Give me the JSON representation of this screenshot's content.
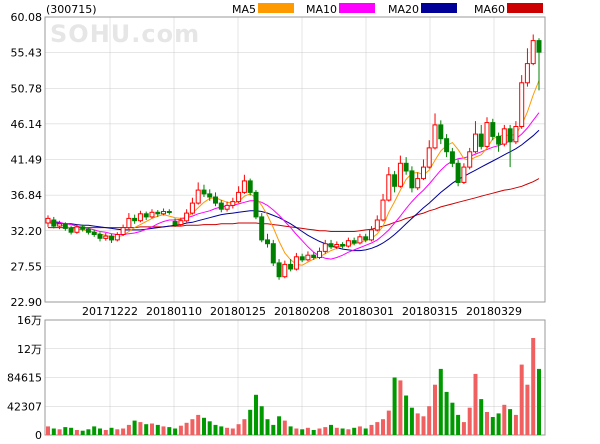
{
  "chart_data": {
    "type": "candlestick",
    "ticker": "(300715)",
    "watermark": "SOHU.com",
    "price_axis": {
      "ylim": [
        22.9,
        60.08
      ],
      "ticks": [
        "60.08",
        "55.43",
        "50.78",
        "46.14",
        "41.49",
        "36.84",
        "32.20",
        "27.55",
        "22.90"
      ]
    },
    "date_ticks": [
      "20171222",
      "20180110",
      "20180125",
      "20180208",
      "20180301",
      "20180315",
      "20180329"
    ],
    "legend": [
      {
        "name": "MA5",
        "color": "#FF9900"
      },
      {
        "name": "MA10",
        "color": "#FF00FF"
      },
      {
        "name": "MA20",
        "color": "#000099"
      },
      {
        "name": "MA60",
        "color": "#CC0000"
      }
    ],
    "colors": {
      "up": "#FF0000",
      "down": "#008000",
      "up_fill": "#FFFFFF",
      "volume_up": "#F06060",
      "volume_down": "#009900",
      "grid": "#CCCCCC"
    },
    "volume_axis": {
      "ylim": [
        0,
        160000
      ],
      "ticks": [
        "16万",
        "12万",
        "84615",
        "42307",
        "0"
      ]
    },
    "candles": [
      [
        33.2,
        33.8,
        34.2,
        32.7
      ],
      [
        33.6,
        32.8,
        34.0,
        32.5
      ],
      [
        32.8,
        33.1,
        33.5,
        32.4
      ],
      [
        33.1,
        32.5,
        33.3,
        32.2
      ],
      [
        32.5,
        32.0,
        32.8,
        31.7
      ],
      [
        32.0,
        32.7,
        33.0,
        31.8
      ],
      [
        32.7,
        32.4,
        33.0,
        32.1
      ],
      [
        32.4,
        32.0,
        32.6,
        31.7
      ],
      [
        32.0,
        31.7,
        32.3,
        31.4
      ],
      [
        31.7,
        31.2,
        32.0,
        30.8
      ],
      [
        31.2,
        31.5,
        31.9,
        30.9
      ],
      [
        31.5,
        31.0,
        31.8,
        30.6
      ],
      [
        31.0,
        31.7,
        32.0,
        30.8
      ],
      [
        31.7,
        32.6,
        33.0,
        31.5
      ],
      [
        32.6,
        33.8,
        34.5,
        32.4
      ],
      [
        33.8,
        33.5,
        34.3,
        33.1
      ],
      [
        33.5,
        34.4,
        34.8,
        33.3
      ],
      [
        34.4,
        34.0,
        34.7,
        33.6
      ],
      [
        34.0,
        34.6,
        35.0,
        33.8
      ],
      [
        34.6,
        34.4,
        34.9,
        34.0
      ],
      [
        34.4,
        34.7,
        35.1,
        34.2
      ],
      [
        34.7,
        34.6,
        35.0,
        34.3
      ],
      [
        33.4,
        33.0,
        33.8,
        32.7
      ],
      [
        33.0,
        33.5,
        33.9,
        32.8
      ],
      [
        33.5,
        34.5,
        35.0,
        33.3
      ],
      [
        34.5,
        35.8,
        36.5,
        34.3
      ],
      [
        35.8,
        37.5,
        38.5,
        35.6
      ],
      [
        37.5,
        37.0,
        38.2,
        36.6
      ],
      [
        37.0,
        36.6,
        37.6,
        36.1
      ],
      [
        36.6,
        35.8,
        37.2,
        35.4
      ],
      [
        35.8,
        35.0,
        36.2,
        34.6
      ],
      [
        35.0,
        35.5,
        36.0,
        34.7
      ],
      [
        35.5,
        36.0,
        36.5,
        35.1
      ],
      [
        36.0,
        37.2,
        38.0,
        35.8
      ],
      [
        37.2,
        38.7,
        39.5,
        37.0
      ],
      [
        38.7,
        37.2,
        39.0,
        36.8
      ],
      [
        37.2,
        34.0,
        37.5,
        33.7
      ],
      [
        34.0,
        31.0,
        34.5,
        30.7
      ],
      [
        31.0,
        30.5,
        31.8,
        30.0
      ],
      [
        30.5,
        28.0,
        31.0,
        27.6
      ],
      [
        28.0,
        26.2,
        28.5,
        25.8
      ],
      [
        26.2,
        27.8,
        28.3,
        26.0
      ],
      [
        27.8,
        27.2,
        28.5,
        26.9
      ],
      [
        27.2,
        28.8,
        29.3,
        27.0
      ],
      [
        28.8,
        28.4,
        29.2,
        28.1
      ],
      [
        28.4,
        29.0,
        29.5,
        28.2
      ],
      [
        29.0,
        28.7,
        29.4,
        28.4
      ],
      [
        28.7,
        29.5,
        30.0,
        28.5
      ],
      [
        29.5,
        30.5,
        31.0,
        29.2
      ],
      [
        30.5,
        30.1,
        31.0,
        29.8
      ],
      [
        30.1,
        30.4,
        30.8,
        29.8
      ],
      [
        30.4,
        30.2,
        30.7,
        29.9
      ],
      [
        30.2,
        30.9,
        31.3,
        30.0
      ],
      [
        30.9,
        30.6,
        31.3,
        30.3
      ],
      [
        30.6,
        31.4,
        31.8,
        30.4
      ],
      [
        31.4,
        31.0,
        31.8,
        30.7
      ],
      [
        31.0,
        32.3,
        32.8,
        30.8
      ],
      [
        32.3,
        33.6,
        34.2,
        32.1
      ],
      [
        33.6,
        36.2,
        37.0,
        33.4
      ],
      [
        36.2,
        39.5,
        40.5,
        36.0
      ],
      [
        39.5,
        38.0,
        40.0,
        37.2
      ],
      [
        38.0,
        41.0,
        42.0,
        37.8
      ],
      [
        41.0,
        40.0,
        41.8,
        39.5
      ],
      [
        40.0,
        37.8,
        40.6,
        37.2
      ],
      [
        37.8,
        39.0,
        39.8,
        37.5
      ],
      [
        39.0,
        40.5,
        41.5,
        38.8
      ],
      [
        40.5,
        43.0,
        44.0,
        40.3
      ],
      [
        43.0,
        46.0,
        47.5,
        42.8
      ],
      [
        46.0,
        44.2,
        46.6,
        43.5
      ],
      [
        44.2,
        42.5,
        44.8,
        41.8
      ],
      [
        42.5,
        41.0,
        43.0,
        40.5
      ],
      [
        41.0,
        38.5,
        41.5,
        38.0
      ],
      [
        38.5,
        40.5,
        41.0,
        38.3
      ],
      [
        40.5,
        42.5,
        43.0,
        40.2
      ],
      [
        42.5,
        44.8,
        46.5,
        42.3
      ],
      [
        44.8,
        43.2,
        46.0,
        42.8
      ],
      [
        43.2,
        46.3,
        47.0,
        43.0
      ],
      [
        46.3,
        44.5,
        46.8,
        44.0
      ],
      [
        44.5,
        43.5,
        45.0,
        42.5
      ],
      [
        43.5,
        45.5,
        46.0,
        43.2
      ],
      [
        45.5,
        43.8,
        46.0,
        40.5
      ],
      [
        43.8,
        45.8,
        46.5,
        43.5
      ],
      [
        45.8,
        51.5,
        52.5,
        45.5
      ],
      [
        51.5,
        54.0,
        56.0,
        51.0
      ],
      [
        54.0,
        57.0,
        57.8,
        53.8
      ],
      [
        57.0,
        55.5,
        57.3,
        50.5
      ]
    ],
    "ma5": [
      33.4,
      33.2,
      33.0,
      32.8,
      32.5,
      32.4,
      32.3,
      32.2,
      32.0,
      31.8,
      31.6,
      31.4,
      31.4,
      31.6,
      32.1,
      32.6,
      33.0,
      33.4,
      33.8,
      34.1,
      34.3,
      34.1,
      33.9,
      33.8,
      34.0,
      34.5,
      35.2,
      35.9,
      36.4,
      36.5,
      36.2,
      35.9,
      35.8,
      36.0,
      36.7,
      37.0,
      36.5,
      35.5,
      34.2,
      32.6,
      30.8,
      29.3,
      28.4,
      27.8,
      27.7,
      28.1,
      28.5,
      28.8,
      29.2,
      29.6,
      29.9,
      30.2,
      30.4,
      30.5,
      30.7,
      30.9,
      31.2,
      31.8,
      32.8,
      34.6,
      36.0,
      37.5,
      38.9,
      39.7,
      39.8,
      39.5,
      40.1,
      41.4,
      42.6,
      43.3,
      43.7,
      42.8,
      41.6,
      41.4,
      41.8,
      42.1,
      43.0,
      44.2,
      44.5,
      44.7,
      44.6,
      44.8,
      46.0,
      47.7,
      49.9,
      51.8
    ],
    "ma10": [
      33.5,
      33.4,
      33.3,
      33.1,
      33.0,
      32.8,
      32.6,
      32.5,
      32.3,
      32.1,
      32.0,
      31.8,
      31.7,
      31.7,
      31.8,
      31.9,
      32.1,
      32.4,
      32.7,
      33.1,
      33.4,
      33.6,
      33.6,
      33.7,
      33.9,
      34.1,
      34.4,
      34.6,
      34.8,
      35.1,
      35.3,
      35.4,
      35.5,
      35.7,
      35.9,
      36.1,
      36.1,
      35.9,
      35.5,
      34.9,
      34.2,
      33.4,
      32.6,
      31.7,
      30.9,
      30.1,
      29.4,
      28.9,
      28.6,
      28.5,
      28.7,
      29.0,
      29.4,
      29.7,
      30.0,
      30.3,
      30.6,
      31.0,
      31.6,
      32.3,
      33.2,
      34.1,
      35.1,
      36.0,
      36.8,
      37.5,
      38.3,
      39.2,
      40.1,
      40.8,
      41.3,
      41.6,
      41.7,
      41.9,
      42.2,
      42.5,
      42.8,
      43.1,
      43.3,
      43.6,
      43.9,
      44.2,
      44.8,
      45.6,
      46.6,
      47.6
    ],
    "ma20": [
      33.2,
      33.2,
      33.2,
      33.1,
      33.1,
      33.0,
      32.9,
      32.9,
      32.8,
      32.7,
      32.6,
      32.5,
      32.4,
      32.3,
      32.3,
      32.3,
      32.3,
      32.4,
      32.5,
      32.6,
      32.7,
      32.8,
      32.9,
      33.0,
      33.2,
      33.3,
      33.5,
      33.7,
      33.9,
      34.1,
      34.3,
      34.4,
      34.5,
      34.6,
      34.7,
      34.8,
      34.8,
      34.7,
      34.5,
      34.2,
      33.9,
      33.5,
      33.1,
      32.6,
      32.1,
      31.6,
      31.2,
      30.8,
      30.5,
      30.2,
      30.0,
      29.8,
      29.7,
      29.6,
      29.6,
      29.7,
      29.9,
      30.2,
      30.6,
      31.1,
      31.7,
      32.4,
      33.1,
      33.8,
      34.5,
      35.2,
      35.8,
      36.5,
      37.2,
      37.8,
      38.4,
      38.9,
      39.3,
      39.7,
      40.1,
      40.5,
      40.9,
      41.3,
      41.7,
      42.1,
      42.5,
      42.9,
      43.4,
      44.0,
      44.6,
      45.3
    ],
    "ma60": [
      32.6,
      32.6,
      32.6,
      32.6,
      32.6,
      32.6,
      32.6,
      32.6,
      32.6,
      32.6,
      32.6,
      32.6,
      32.6,
      32.6,
      32.6,
      32.6,
      32.7,
      32.7,
      32.7,
      32.7,
      32.7,
      32.8,
      32.8,
      32.8,
      32.9,
      32.9,
      32.9,
      33.0,
      33.0,
      33.0,
      33.1,
      33.1,
      33.1,
      33.2,
      33.2,
      33.2,
      33.2,
      33.1,
      33.1,
      33.0,
      32.9,
      32.8,
      32.7,
      32.6,
      32.5,
      32.4,
      32.3,
      32.2,
      32.2,
      32.1,
      32.1,
      32.1,
      32.1,
      32.1,
      32.2,
      32.3,
      32.4,
      32.6,
      32.8,
      33.0,
      33.3,
      33.5,
      33.8,
      34.0,
      34.3,
      34.5,
      34.8,
      35.0,
      35.3,
      35.5,
      35.7,
      35.9,
      36.1,
      36.3,
      36.5,
      36.7,
      36.9,
      37.1,
      37.3,
      37.5,
      37.6,
      37.8,
      38.0,
      38.3,
      38.6,
      39.0
    ],
    "volumes": [
      12000,
      9000,
      8000,
      11000,
      10000,
      7000,
      6000,
      8000,
      12000,
      9000,
      7000,
      10000,
      8000,
      9000,
      14000,
      20000,
      18000,
      15000,
      16000,
      14000,
      12000,
      11000,
      9000,
      13000,
      17000,
      22000,
      28000,
      24000,
      19000,
      14000,
      12000,
      10000,
      9000,
      15000,
      22000,
      35000,
      56000,
      40000,
      22000,
      14000,
      26000,
      20000,
      12000,
      9000,
      8000,
      10000,
      7000,
      9000,
      11000,
      14000,
      10000,
      9000,
      8000,
      10000,
      12000,
      9000,
      14000,
      18000,
      22000,
      34000,
      80000,
      76000,
      55000,
      38000,
      30000,
      26000,
      40000,
      70000,
      92000,
      60000,
      45000,
      28000,
      18000,
      38000,
      85000,
      50000,
      32000,
      25000,
      30000,
      42000,
      36000,
      28000,
      98000,
      70000,
      135000,
      92000
    ]
  }
}
